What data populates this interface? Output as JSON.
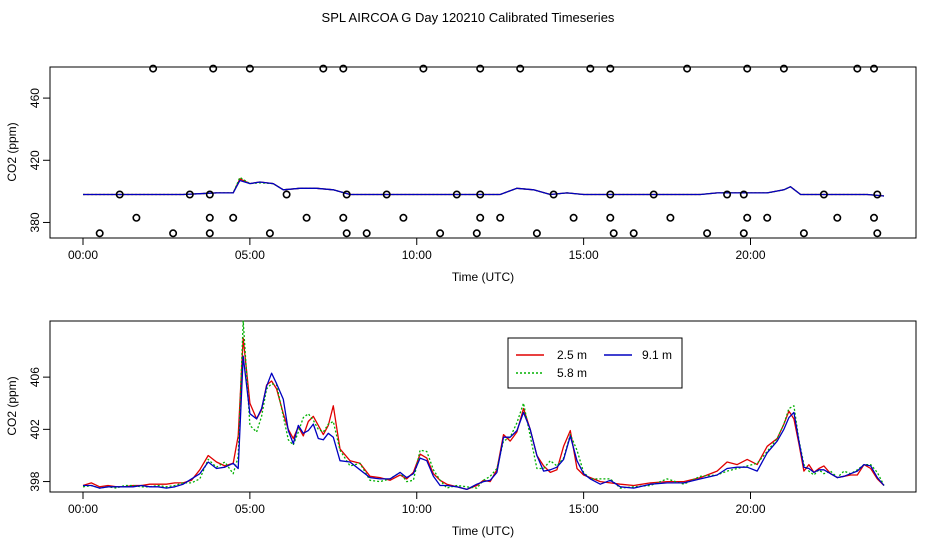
{
  "title": "SPL AIRCOA G  Day 120210  Calibrated Timeseries",
  "colors": {
    "s25": "#e00000",
    "s58": "#00b000",
    "s91": "#0000c0",
    "axis": "#000000"
  },
  "chart_data": [
    {
      "type": "scatter",
      "name": "calibration",
      "xlabel": "Time (UTC)",
      "ylabel": "CO2 (ppm)",
      "xlim": [
        0,
        24
      ],
      "ylim": [
        370,
        480
      ],
      "xticks": [
        {
          "v": 0,
          "label": "00:00"
        },
        {
          "v": 5,
          "label": "05:00"
        },
        {
          "v": 10,
          "label": "10:00"
        },
        {
          "v": 15,
          "label": "15:00"
        },
        {
          "v": 20,
          "label": "20:00"
        }
      ],
      "yticks": [
        {
          "v": 380,
          "label": "380"
        },
        {
          "v": 420,
          "label": "420"
        },
        {
          "v": 460,
          "label": "460"
        }
      ],
      "points": [
        {
          "x": 2.1,
          "y": 479
        },
        {
          "x": 3.9,
          "y": 479
        },
        {
          "x": 5.0,
          "y": 479
        },
        {
          "x": 7.2,
          "y": 479
        },
        {
          "x": 7.8,
          "y": 479
        },
        {
          "x": 10.2,
          "y": 479
        },
        {
          "x": 11.9,
          "y": 479
        },
        {
          "x": 13.1,
          "y": 479
        },
        {
          "x": 15.2,
          "y": 479
        },
        {
          "x": 15.8,
          "y": 479
        },
        {
          "x": 18.1,
          "y": 479
        },
        {
          "x": 19.9,
          "y": 479
        },
        {
          "x": 21.0,
          "y": 479
        },
        {
          "x": 23.2,
          "y": 479
        },
        {
          "x": 23.7,
          "y": 479
        },
        {
          "x": 1.1,
          "y": 398
        },
        {
          "x": 3.2,
          "y": 398
        },
        {
          "x": 3.8,
          "y": 398
        },
        {
          "x": 6.1,
          "y": 398
        },
        {
          "x": 7.9,
          "y": 398
        },
        {
          "x": 9.1,
          "y": 398
        },
        {
          "x": 11.2,
          "y": 398
        },
        {
          "x": 11.9,
          "y": 398
        },
        {
          "x": 14.1,
          "y": 398
        },
        {
          "x": 15.8,
          "y": 398
        },
        {
          "x": 17.1,
          "y": 398
        },
        {
          "x": 19.3,
          "y": 398
        },
        {
          "x": 19.8,
          "y": 398
        },
        {
          "x": 22.2,
          "y": 398
        },
        {
          "x": 23.8,
          "y": 398
        },
        {
          "x": 1.6,
          "y": 383
        },
        {
          "x": 3.8,
          "y": 383
        },
        {
          "x": 4.5,
          "y": 383
        },
        {
          "x": 6.7,
          "y": 383
        },
        {
          "x": 7.8,
          "y": 383
        },
        {
          "x": 9.6,
          "y": 383
        },
        {
          "x": 11.9,
          "y": 383
        },
        {
          "x": 12.5,
          "y": 383
        },
        {
          "x": 14.7,
          "y": 383
        },
        {
          "x": 15.8,
          "y": 383
        },
        {
          "x": 17.6,
          "y": 383
        },
        {
          "x": 19.9,
          "y": 383
        },
        {
          "x": 20.5,
          "y": 383
        },
        {
          "x": 22.6,
          "y": 383
        },
        {
          "x": 23.7,
          "y": 383
        },
        {
          "x": 0.5,
          "y": 373
        },
        {
          "x": 2.7,
          "y": 373
        },
        {
          "x": 3.8,
          "y": 373
        },
        {
          "x": 5.6,
          "y": 373
        },
        {
          "x": 7.9,
          "y": 373
        },
        {
          "x": 8.5,
          "y": 373
        },
        {
          "x": 10.7,
          "y": 373
        },
        {
          "x": 11.8,
          "y": 373
        },
        {
          "x": 13.6,
          "y": 373
        },
        {
          "x": 15.9,
          "y": 373
        },
        {
          "x": 16.5,
          "y": 373
        },
        {
          "x": 18.7,
          "y": 373
        },
        {
          "x": 19.8,
          "y": 373
        },
        {
          "x": 21.6,
          "y": 373
        },
        {
          "x": 23.8,
          "y": 373
        }
      ],
      "series": [
        {
          "name": "2.5 m",
          "x": [
            0,
            0.5,
            1,
            1.5,
            2,
            2.5,
            3,
            3.5,
            4,
            4.5,
            4.7,
            5,
            5.3,
            5.7,
            6,
            6.5,
            7,
            7.5,
            8,
            8.5,
            9,
            9.5,
            10,
            10.5,
            11,
            11.5,
            12,
            12.5,
            13,
            13.5,
            14,
            14.5,
            15,
            15.5,
            16,
            16.5,
            17,
            17.5,
            18,
            18.5,
            19,
            19.5,
            20,
            20.5,
            21,
            21.2,
            21.5,
            22,
            22.5,
            23,
            23.5,
            24
          ],
          "values": [
            398,
            398,
            398,
            398,
            398,
            398,
            398,
            398.5,
            399,
            399,
            408,
            405,
            406,
            405,
            401,
            402,
            402,
            401,
            398,
            398,
            398,
            398,
            398,
            398,
            398,
            398,
            398,
            398,
            402,
            401,
            398,
            399,
            398,
            398,
            398,
            398,
            398,
            398,
            398,
            398,
            399,
            399,
            399,
            399,
            401,
            403,
            398,
            398,
            398,
            398,
            398,
            397
          ]
        },
        {
          "name": "5.8 m",
          "x": [
            0,
            0.5,
            1,
            1.5,
            2,
            2.5,
            3,
            3.5,
            4,
            4.5,
            4.7,
            5,
            5.3,
            5.7,
            6,
            6.5,
            7,
            7.5,
            8,
            8.5,
            9,
            9.5,
            10,
            10.5,
            11,
            11.5,
            12,
            12.5,
            13,
            13.5,
            14,
            14.5,
            15,
            15.5,
            16,
            16.5,
            17,
            17.5,
            18,
            18.5,
            19,
            19.5,
            20,
            20.5,
            21,
            21.2,
            21.5,
            22,
            22.5,
            23,
            23.5,
            24
          ],
          "values": [
            398,
            398,
            398,
            398,
            398,
            398,
            398,
            398.5,
            399,
            399,
            409,
            405,
            405.5,
            405,
            401,
            402,
            402,
            401,
            398,
            398,
            398,
            398,
            398,
            398,
            398,
            398,
            398,
            398,
            402,
            401,
            398,
            399,
            398,
            398,
            398,
            398,
            398,
            398,
            398,
            398,
            399,
            399,
            399,
            399,
            401,
            403,
            398,
            398,
            398,
            398,
            398,
            397
          ]
        },
        {
          "name": "9.1 m",
          "x": [
            0,
            0.5,
            1,
            1.5,
            2,
            2.5,
            3,
            3.5,
            4,
            4.5,
            4.7,
            5,
            5.3,
            5.7,
            6,
            6.5,
            7,
            7.5,
            8,
            8.5,
            9,
            9.5,
            10,
            10.5,
            11,
            11.5,
            12,
            12.5,
            13,
            13.5,
            14,
            14.5,
            15,
            15.5,
            16,
            16.5,
            17,
            17.5,
            18,
            18.5,
            19,
            19.5,
            20,
            20.5,
            21,
            21.2,
            21.5,
            22,
            22.5,
            23,
            23.5,
            24
          ],
          "values": [
            398,
            398,
            398,
            398,
            398,
            398,
            398,
            398.5,
            399,
            399,
            407,
            405,
            406,
            405,
            401,
            402,
            402,
            401,
            398,
            398,
            398,
            398,
            398,
            398,
            398,
            398,
            398,
            398,
            402,
            401,
            398,
            399,
            398,
            398,
            398,
            398,
            398,
            398,
            398,
            398,
            399,
            399,
            399,
            399,
            401,
            403,
            398,
            398,
            398,
            398,
            398,
            397
          ]
        }
      ]
    },
    {
      "type": "line",
      "name": "timeseries",
      "xlabel": "Time (UTC)",
      "ylabel": "CO2 (ppm)",
      "xlim": [
        0,
        24
      ],
      "ylim": [
        397.2,
        410.3
      ],
      "xticks": [
        {
          "v": 0,
          "label": "00:00"
        },
        {
          "v": 5,
          "label": "05:00"
        },
        {
          "v": 10,
          "label": "10:00"
        },
        {
          "v": 15,
          "label": "15:00"
        },
        {
          "v": 20,
          "label": "20:00"
        }
      ],
      "yticks": [
        {
          "v": 398,
          "label": "398"
        },
        {
          "v": 402,
          "label": "402"
        },
        {
          "v": 406,
          "label": "406"
        }
      ],
      "legend": [
        "2.5 m",
        "5.8 m",
        "9.1 m"
      ],
      "x": [
        0,
        0.25,
        0.5,
        0.75,
        1,
        1.25,
        1.5,
        1.75,
        2,
        2.25,
        2.5,
        2.75,
        3,
        3.25,
        3.5,
        3.75,
        4,
        4.25,
        4.5,
        4.65,
        4.8,
        5,
        5.2,
        5.35,
        5.5,
        5.65,
        5.8,
        6,
        6.15,
        6.3,
        6.45,
        6.6,
        6.75,
        6.9,
        7.05,
        7.2,
        7.35,
        7.5,
        7.7,
        8,
        8.3,
        8.6,
        8.9,
        9.2,
        9.5,
        9.7,
        9.9,
        10.1,
        10.3,
        10.5,
        10.7,
        10.9,
        11.2,
        11.5,
        11.8,
        12,
        12.2,
        12.4,
        12.6,
        12.8,
        13,
        13.2,
        13.4,
        13.6,
        13.8,
        14,
        14.2,
        14.4,
        14.6,
        14.8,
        15,
        15.2,
        15.5,
        15.8,
        16.1,
        16.5,
        17,
        17.5,
        18,
        18.5,
        19,
        19.3,
        19.6,
        19.9,
        20.2,
        20.5,
        20.8,
        21,
        21.15,
        21.3,
        21.45,
        21.6,
        21.75,
        21.9,
        22.05,
        22.2,
        22.4,
        22.6,
        22.8,
        23,
        23.2,
        23.4,
        23.6,
        23.8,
        24
      ],
      "series": [
        {
          "name": "2.5 m",
          "values": [
            397.7,
            397.9,
            397.6,
            397.7,
            397.6,
            397.6,
            397.7,
            397.7,
            397.8,
            397.8,
            397.8,
            397.9,
            397.9,
            398.1,
            398.9,
            400.0,
            399.5,
            399.2,
            399.4,
            401.5,
            409.0,
            404.0,
            402.8,
            403.5,
            405.4,
            405.7,
            405.1,
            403.2,
            402.0,
            401.3,
            402.2,
            401.5,
            402.6,
            403.0,
            402.3,
            401.6,
            402.3,
            403.8,
            400.5,
            399.6,
            399.4,
            398.4,
            398.3,
            398.1,
            398.5,
            398.2,
            398.7,
            400.1,
            399.8,
            398.6,
            398.1,
            397.8,
            397.6,
            397.4,
            397.7,
            398.1,
            398.0,
            398.9,
            401.6,
            401.1,
            401.8,
            403.6,
            402.0,
            400.0,
            399.2,
            398.7,
            398.9,
            400.7,
            401.9,
            399.0,
            398.5,
            398.3,
            398.0,
            397.9,
            397.8,
            397.7,
            397.9,
            398.0,
            398.0,
            398.3,
            398.8,
            399.5,
            399.3,
            399.7,
            399.3,
            400.7,
            401.3,
            402.4,
            403.4,
            402.8,
            400.9,
            398.8,
            399.3,
            398.7,
            399.0,
            399.2,
            398.6,
            398.3,
            398.4,
            398.5,
            398.5,
            399.3,
            399.0,
            398.2,
            397.7
          ]
        },
        {
          "name": "5.8 m",
          "values": [
            397.6,
            397.7,
            397.5,
            397.6,
            397.5,
            397.7,
            397.7,
            397.6,
            397.6,
            397.7,
            397.6,
            397.7,
            397.9,
            397.9,
            398.2,
            399.7,
            399.1,
            399.5,
            398.6,
            399.9,
            410.3,
            402.3,
            401.8,
            403.0,
            405.1,
            405.5,
            405.4,
            403.0,
            401.2,
            400.8,
            401.8,
            402.9,
            403.2,
            402.7,
            402.0,
            401.8,
            402.4,
            402.6,
            400.4,
            399.2,
            399.4,
            398.1,
            398.0,
            398.2,
            398.7,
            398.0,
            398.1,
            400.4,
            400.3,
            398.9,
            398.1,
            397.5,
            397.7,
            397.6,
            397.5,
            398.1,
            398.4,
            399.0,
            401.1,
            401.4,
            402.5,
            404.0,
            401.5,
            399.0,
            399.0,
            399.6,
            399.2,
            399.8,
            401.6,
            400.4,
            398.7,
            398.2,
            398.2,
            398.2,
            397.5,
            397.6,
            397.7,
            398.2,
            397.8,
            398.4,
            398.5,
            398.8,
            399.0,
            399.2,
            399.4,
            400.3,
            401.3,
            402.4,
            403.6,
            403.8,
            401.2,
            399.3,
            398.8,
            398.5,
            398.9,
            398.6,
            398.8,
            398.3,
            398.8,
            398.6,
            398.9,
            399.3,
            399.3,
            398.7,
            397.7
          ]
        },
        {
          "name": "9.1 m",
          "values": [
            397.7,
            397.7,
            397.5,
            397.6,
            397.6,
            397.6,
            397.6,
            397.7,
            397.6,
            397.6,
            397.5,
            397.6,
            397.8,
            398.2,
            398.6,
            399.5,
            399.0,
            399.1,
            399.4,
            399.0,
            407.6,
            403.2,
            402.8,
            403.6,
            405.3,
            406.3,
            405.5,
            404.3,
            401.9,
            400.9,
            402.3,
            401.7,
            401.9,
            402.4,
            401.3,
            401.2,
            401.7,
            401.4,
            399.6,
            399.5,
            398.9,
            398.3,
            398.2,
            398.2,
            398.7,
            398.3,
            398.6,
            399.8,
            399.6,
            398.4,
            397.7,
            397.7,
            397.6,
            397.4,
            397.8,
            398.0,
            398.1,
            398.7,
            401.4,
            401.4,
            401.9,
            403.3,
            402.0,
            400.0,
            398.8,
            398.9,
            399.1,
            399.7,
            401.5,
            399.6,
            398.6,
            398.2,
            397.8,
            398.1,
            397.6,
            397.5,
            397.8,
            397.9,
            397.9,
            398.2,
            398.5,
            399.0,
            399.1,
            399.1,
            398.8,
            400.2,
            401.1,
            402.0,
            402.9,
            403.3,
            401.1,
            399.1,
            399.0,
            398.7,
            398.9,
            398.9,
            398.6,
            398.3,
            398.4,
            398.6,
            398.8,
            399.3,
            399.2,
            398.3,
            397.7
          ]
        }
      ]
    }
  ]
}
